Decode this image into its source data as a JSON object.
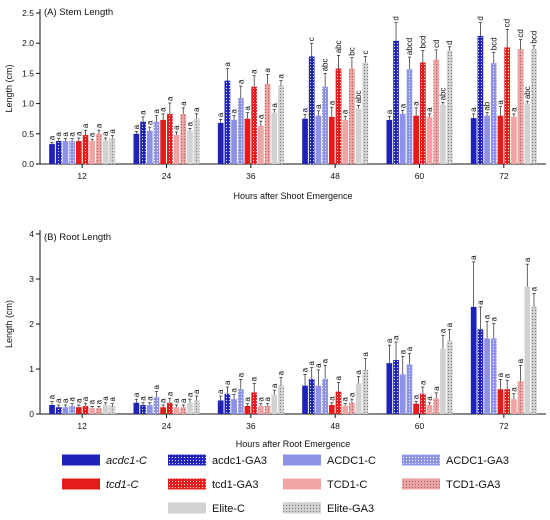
{
  "chart_data": [
    {
      "type": "bar",
      "title": "(A) Stem Length",
      "xlabel": "Hours after Shoot Emergence",
      "ylabel": "Length (cm)",
      "ylim": [
        0,
        2.5
      ],
      "yticks": [
        "0.0",
        "0.5",
        "1.0",
        "1.5",
        "2.0",
        "2.5"
      ],
      "categories": [
        "12",
        "24",
        "36",
        "48",
        "60",
        "72"
      ],
      "series": [
        {
          "name": "acdc1-C",
          "values": [
            0.33,
            0.5,
            0.68,
            0.75,
            0.73,
            0.76
          ],
          "errors": [
            0.03,
            0.04,
            0.06,
            0.07,
            0.06,
            0.07
          ],
          "letters": [
            "a",
            "a",
            "a",
            "a",
            "a",
            "a"
          ]
        },
        {
          "name": "acdc1-GA3",
          "values": [
            0.38,
            0.7,
            1.38,
            1.78,
            2.04,
            2.12
          ],
          "errors": [
            0.04,
            0.08,
            0.2,
            0.22,
            0.3,
            0.22
          ],
          "letters": [
            "a",
            "a",
            "a",
            "c",
            "d",
            "d"
          ]
        },
        {
          "name": "ACDC1-C",
          "values": [
            0.38,
            0.55,
            0.73,
            0.8,
            0.83,
            0.8
          ],
          "errors": [
            0.04,
            0.06,
            0.07,
            0.08,
            0.06,
            0.05
          ],
          "letters": [
            "a",
            "a",
            "a",
            "a",
            "a",
            "ab"
          ]
        },
        {
          "name": "ACDC1-GA3",
          "values": [
            0.38,
            0.7,
            1.09,
            1.28,
            1.57,
            1.67
          ],
          "errors": [
            0.04,
            0.1,
            0.2,
            0.22,
            0.2,
            0.18
          ],
          "letters": [
            "a",
            "a",
            "a",
            "abc",
            "abcd",
            "bcd"
          ]
        },
        {
          "name": "tcd1-C",
          "values": [
            0.38,
            0.73,
            0.75,
            0.78,
            0.8,
            0.8
          ],
          "errors": [
            0.05,
            0.1,
            0.1,
            0.16,
            0.13,
            0.15
          ],
          "letters": [
            "a",
            "a",
            "a",
            "a",
            "a",
            "a"
          ]
        },
        {
          "name": "tcd1-GA3",
          "values": [
            0.48,
            0.83,
            1.28,
            1.58,
            1.68,
            1.93
          ],
          "errors": [
            0.08,
            0.18,
            0.18,
            0.22,
            0.2,
            0.3
          ],
          "letters": [
            "a",
            "a",
            "a",
            "abc",
            "bcd",
            "cd"
          ]
        },
        {
          "name": "TCD1-C",
          "values": [
            0.38,
            0.48,
            0.63,
            0.73,
            0.78,
            0.78
          ],
          "errors": [
            0.03,
            0.05,
            0.08,
            0.06,
            0.05,
            0.05
          ],
          "letters": [
            "a",
            "a",
            "a",
            "a",
            "a",
            "a"
          ]
        },
        {
          "name": "TCD1-GA3",
          "values": [
            0.5,
            0.83,
            1.33,
            1.58,
            1.73,
            1.9
          ],
          "errors": [
            0.06,
            0.1,
            0.15,
            0.18,
            0.16,
            0.16
          ],
          "letters": [
            "a",
            "a",
            "a",
            "bc",
            "cd",
            "cd"
          ]
        },
        {
          "name": "Elite-C",
          "values": [
            0.4,
            0.55,
            0.85,
            0.92,
            0.98,
            1.0
          ],
          "errors": [
            0.03,
            0.04,
            0.05,
            0.05,
            0.04,
            0.04
          ],
          "letters": [
            "a",
            "a",
            "a",
            "abc",
            "abc",
            "abc"
          ]
        },
        {
          "name": "Elite-GA3",
          "values": [
            0.43,
            0.75,
            1.3,
            1.68,
            1.88,
            1.9
          ],
          "errors": [
            0.04,
            0.08,
            0.08,
            0.1,
            0.06,
            0.06
          ],
          "letters": [
            "a",
            "a",
            "a",
            "c",
            "d",
            "bcd"
          ]
        }
      ]
    },
    {
      "type": "bar",
      "title": "(B) Root Length",
      "xlabel": "Hours after Root Emergence",
      "ylabel": "Length (cm)",
      "ylim": [
        0,
        4
      ],
      "yticks": [
        "0",
        "1",
        "2",
        "3",
        "4"
      ],
      "categories": [
        "12",
        "24",
        "36",
        "48",
        "60",
        "72"
      ],
      "series": [
        {
          "name": "acdc1-C",
          "values": [
            0.2,
            0.25,
            0.3,
            0.63,
            1.13,
            2.38
          ],
          "errors": [
            0.08,
            0.08,
            0.1,
            0.25,
            0.4,
            1.0
          ],
          "letters": [
            "a",
            "a",
            "a",
            "a",
            "a",
            "a"
          ]
        },
        {
          "name": "acdc1-GA3",
          "values": [
            0.15,
            0.2,
            0.45,
            0.78,
            1.2,
            1.88
          ],
          "errors": [
            0.05,
            0.05,
            0.15,
            0.25,
            0.4,
            0.5
          ],
          "letters": [
            "a",
            "a",
            "a",
            "a",
            "a",
            "a"
          ]
        },
        {
          "name": "ACDC1-C",
          "values": [
            0.15,
            0.2,
            0.33,
            0.63,
            0.88,
            1.68
          ],
          "errors": [
            0.05,
            0.05,
            0.1,
            0.35,
            0.4,
            0.38
          ],
          "letters": [
            "a",
            "a",
            "a",
            "a",
            "a",
            "a"
          ]
        },
        {
          "name": "ACDC1-GA3",
          "values": [
            0.18,
            0.38,
            0.55,
            0.78,
            1.1,
            1.68
          ],
          "errors": [
            0.05,
            0.12,
            0.22,
            0.3,
            0.25,
            0.33
          ],
          "letters": [
            "a",
            "a",
            "a",
            "a",
            "a",
            "a"
          ]
        },
        {
          "name": "tcd1-C",
          "values": [
            0.15,
            0.15,
            0.18,
            0.2,
            0.23,
            0.55
          ],
          "errors": [
            0.05,
            0.05,
            0.05,
            0.05,
            0.05,
            0.22
          ],
          "letters": [
            "a",
            "a",
            "a",
            "a",
            "a",
            "a"
          ]
        },
        {
          "name": "tcd1-GA3",
          "values": [
            0.18,
            0.25,
            0.48,
            0.5,
            0.45,
            0.55
          ],
          "errors": [
            0.06,
            0.1,
            0.2,
            0.2,
            0.15,
            0.2
          ],
          "letters": [
            "a",
            "a",
            "a",
            "a",
            "a",
            "a"
          ]
        },
        {
          "name": "TCD1-C",
          "values": [
            0.13,
            0.15,
            0.18,
            0.18,
            0.2,
            0.33
          ],
          "errors": [
            0.04,
            0.05,
            0.05,
            0.05,
            0.05,
            0.12
          ],
          "letters": [
            "a",
            "a",
            "a",
            "a",
            "a",
            "a"
          ]
        },
        {
          "name": "TCD1-GA3",
          "values": [
            0.13,
            0.15,
            0.18,
            0.25,
            0.35,
            0.73
          ],
          "errors": [
            0.04,
            0.05,
            0.05,
            0.08,
            0.12,
            0.35
          ],
          "letters": [
            "a",
            "a",
            "a",
            "a",
            "a",
            "a"
          ]
        },
        {
          "name": "Elite-C",
          "values": [
            0.2,
            0.25,
            0.43,
            0.68,
            1.45,
            2.83
          ],
          "errors": [
            0.05,
            0.08,
            0.1,
            0.15,
            0.3,
            0.5
          ],
          "letters": [
            "a",
            "a",
            "a",
            "a",
            "a",
            "a"
          ]
        },
        {
          "name": "Elite-GA3",
          "values": [
            0.18,
            0.3,
            0.63,
            0.98,
            1.63,
            2.38
          ],
          "errors": [
            0.05,
            0.1,
            0.18,
            0.25,
            0.25,
            0.3
          ],
          "letters": [
            "a",
            "a",
            "a",
            "a",
            "a",
            "a"
          ]
        }
      ]
    }
  ],
  "legend": [
    {
      "name": "acdc1-C",
      "italic": true,
      "color": "#1f22b8",
      "dotted": false
    },
    {
      "name": "acdc1-GA3",
      "italic": false,
      "color": "#1f22b8",
      "dotted": true
    },
    {
      "name": "ACDC1-C",
      "italic": false,
      "color": "#8d92e6",
      "dotted": false
    },
    {
      "name": "ACDC1-GA3",
      "italic": false,
      "color": "#8d92e6",
      "dotted": true
    },
    {
      "name": "tcd1-C",
      "italic": true,
      "color": "#e31b1b",
      "dotted": false
    },
    {
      "name": "tcd1-GA3",
      "italic": false,
      "color": "#e31b1b",
      "dotted": true
    },
    {
      "name": "TCD1-C",
      "italic": false,
      "color": "#f2a3a3",
      "dotted": false
    },
    {
      "name": "TCD1-GA3",
      "italic": false,
      "color": "#f2a3a3",
      "dotted": true
    },
    {
      "name": "Elite-C",
      "italic": false,
      "color": "#d2d2d2",
      "dotted": false
    },
    {
      "name": "Elite-GA3",
      "italic": false,
      "color": "#d2d2d2",
      "dotted": true
    }
  ]
}
